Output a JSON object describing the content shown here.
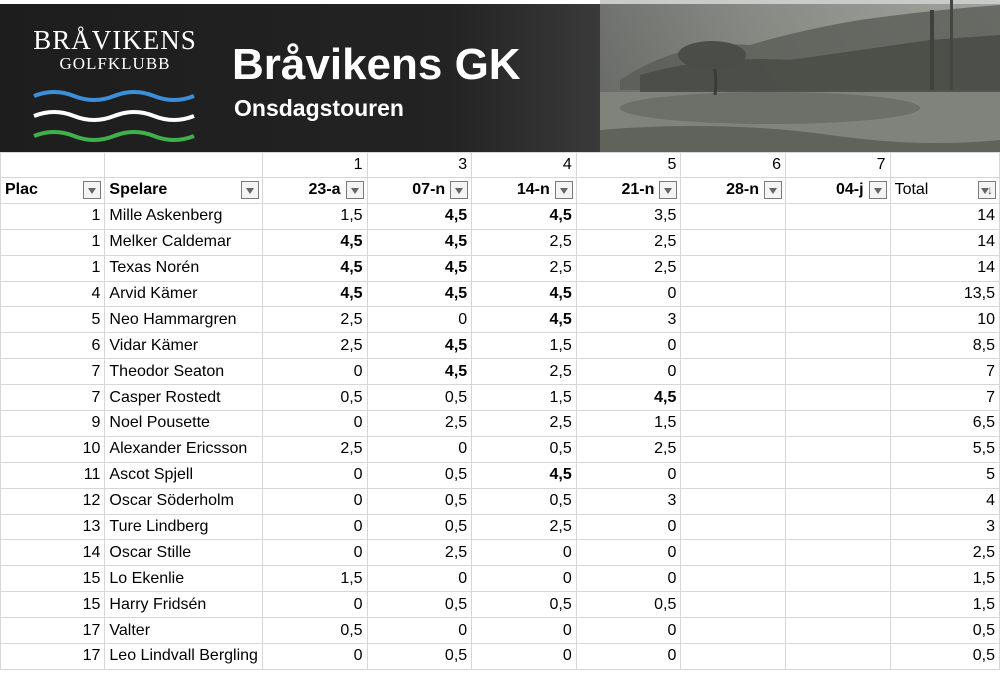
{
  "banner": {
    "logo_line1": "BRÅVIKENS",
    "logo_line2": "GOLFKLUBB",
    "title": "Bråvikens GK",
    "subtitle": "Onsdagstouren"
  },
  "round_numbers": [
    "",
    "",
    "1",
    "3",
    "4",
    "5",
    "6",
    "7",
    ""
  ],
  "headers": [
    "Plac",
    "Spelare",
    "23-a",
    "07-n",
    "14-n",
    "21-n",
    "28-n",
    "04-j",
    "Total"
  ],
  "rows": [
    {
      "plac": "1",
      "name": "Mille Askenberg",
      "r1": "1,5",
      "r3": "4,5",
      "r4": "4,5",
      "r5": "3,5",
      "r6": "",
      "r7": "",
      "total": "14",
      "bold": [
        "r3",
        "r4"
      ]
    },
    {
      "plac": "1",
      "name": "Melker Caldemar",
      "r1": "4,5",
      "r3": "4,5",
      "r4": "2,5",
      "r5": "2,5",
      "r6": "",
      "r7": "",
      "total": "14",
      "bold": [
        "r1",
        "r3"
      ]
    },
    {
      "plac": "1",
      "name": "Texas Norén",
      "r1": "4,5",
      "r3": "4,5",
      "r4": "2,5",
      "r5": "2,5",
      "r6": "",
      "r7": "",
      "total": "14",
      "bold": [
        "r1",
        "r3"
      ]
    },
    {
      "plac": "4",
      "name": "Arvid Kämer",
      "r1": "4,5",
      "r3": "4,5",
      "r4": "4,5",
      "r5": "0",
      "r6": "",
      "r7": "",
      "total": "13,5",
      "bold": [
        "r1",
        "r3",
        "r4"
      ]
    },
    {
      "plac": "5",
      "name": "Neo Hammargren",
      "r1": "2,5",
      "r3": "0",
      "r4": "4,5",
      "r5": "3",
      "r6": "",
      "r7": "",
      "total": "10",
      "bold": [
        "r4"
      ]
    },
    {
      "plac": "6",
      "name": "Vidar Kämer",
      "r1": "2,5",
      "r3": "4,5",
      "r4": "1,5",
      "r5": "0",
      "r6": "",
      "r7": "",
      "total": "8,5",
      "bold": [
        "r3"
      ]
    },
    {
      "plac": "7",
      "name": "Theodor Seaton",
      "r1": "0",
      "r3": "4,5",
      "r4": "2,5",
      "r5": "0",
      "r6": "",
      "r7": "",
      "total": "7",
      "bold": [
        "r3"
      ]
    },
    {
      "plac": "7",
      "name": "Casper Rostedt",
      "r1": "0,5",
      "r3": "0,5",
      "r4": "1,5",
      "r5": "4,5",
      "r6": "",
      "r7": "",
      "total": "7",
      "bold": [
        "r5"
      ]
    },
    {
      "plac": "9",
      "name": "Noel Pousette",
      "r1": "0",
      "r3": "2,5",
      "r4": "2,5",
      "r5": "1,5",
      "r6": "",
      "r7": "",
      "total": "6,5",
      "bold": []
    },
    {
      "plac": "10",
      "name": "Alexander Ericsson",
      "r1": "2,5",
      "r3": "0",
      "r4": "0,5",
      "r5": "2,5",
      "r6": "",
      "r7": "",
      "total": "5,5",
      "bold": []
    },
    {
      "plac": "11",
      "name": "Ascot Spjell",
      "r1": "0",
      "r3": "0,5",
      "r4": "4,5",
      "r5": "0",
      "r6": "",
      "r7": "",
      "total": "5",
      "bold": [
        "r4"
      ]
    },
    {
      "plac": "12",
      "name": "Oscar Söderholm",
      "r1": "0",
      "r3": "0,5",
      "r4": "0,5",
      "r5": "3",
      "r6": "",
      "r7": "",
      "total": "4",
      "bold": []
    },
    {
      "plac": "13",
      "name": "Ture Lindberg",
      "r1": "0",
      "r3": "0,5",
      "r4": "2,5",
      "r5": "0",
      "r6": "",
      "r7": "",
      "total": "3",
      "bold": []
    },
    {
      "plac": "14",
      "name": "Oscar Stille",
      "r1": "0",
      "r3": "2,5",
      "r4": "0",
      "r5": "0",
      "r6": "",
      "r7": "",
      "total": "2,5",
      "bold": []
    },
    {
      "plac": "15",
      "name": "Lo Ekenlie",
      "r1": "1,5",
      "r3": "0",
      "r4": "0",
      "r5": "0",
      "r6": "",
      "r7": "",
      "total": "1,5",
      "bold": []
    },
    {
      "plac": "15",
      "name": "Harry Fridsén",
      "r1": "0",
      "r3": "0,5",
      "r4": "0,5",
      "r5": "0,5",
      "r6": "",
      "r7": "",
      "total": "1,5",
      "bold": []
    },
    {
      "plac": "17",
      "name": "Valter",
      "r1": "0,5",
      "r3": "0",
      "r4": "0",
      "r5": "0",
      "r6": "",
      "r7": "",
      "total": "0,5",
      "bold": []
    },
    {
      "plac": "17",
      "name": "Leo Lindvall Bergling",
      "r1": "0",
      "r3": "0,5",
      "r4": "0",
      "r5": "0",
      "r6": "",
      "r7": "",
      "total": "0,5",
      "bold": []
    }
  ],
  "colors": {
    "banner_dark": "#1d1d1d",
    "wave_blue": "#3b8fd9",
    "wave_white": "#ffffff",
    "wave_green": "#3fb04a",
    "grid_line": "#d6d6d6"
  },
  "icons": {
    "filter": "filter-dropdown-icon",
    "sort": "sort-descending-icon"
  }
}
